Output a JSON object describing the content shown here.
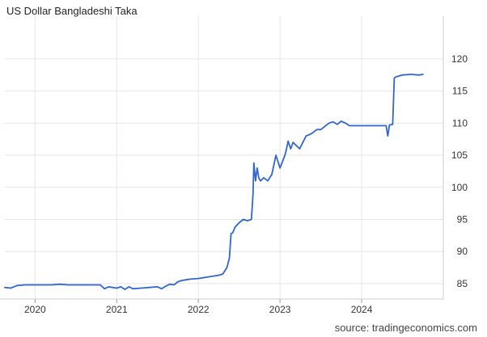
{
  "chart_data": {
    "type": "line",
    "title": "US Dollar Bangladeshi Taka",
    "source": "source: tradingeconomics.com",
    "xlabel": "",
    "ylabel": "",
    "x_ticks": [
      "2020",
      "2021",
      "2022",
      "2023",
      "2024"
    ],
    "y_ticks": [
      85,
      90,
      95,
      100,
      105,
      110,
      115,
      120
    ],
    "xlim": [
      2019.63,
      2025.0
    ],
    "ylim": [
      82.6,
      125.4
    ],
    "grid": true,
    "line_color": "#3366cc",
    "series": [
      {
        "x": [
          2019.63,
          2019.7,
          2019.78,
          2019.88,
          2020.0,
          2020.1,
          2020.2,
          2020.3,
          2020.4,
          2020.45,
          2020.5,
          2020.6,
          2020.7,
          2020.8,
          2020.85,
          2020.9,
          2020.95,
          2021.0,
          2021.05,
          2021.1,
          2021.15,
          2021.2,
          2021.3,
          2021.4,
          2021.5,
          2021.55,
          2021.6,
          2021.65,
          2021.7,
          2021.75,
          2021.8,
          2021.85,
          2021.9,
          2022.0,
          2022.1,
          2022.2,
          2022.25,
          2022.3,
          2022.35,
          2022.38,
          2022.4,
          2022.42,
          2022.45,
          2022.5,
          2022.55,
          2022.6,
          2022.65,
          2022.67,
          2022.68,
          2022.7,
          2022.72,
          2022.74,
          2022.76,
          2022.78,
          2022.8,
          2022.85,
          2022.9,
          2022.95,
          2023.0,
          2023.03,
          2023.06,
          2023.08,
          2023.1,
          2023.13,
          2023.16,
          2023.2,
          2023.24,
          2023.28,
          2023.32,
          2023.36,
          2023.4,
          2023.45,
          2023.5,
          2023.55,
          2023.6,
          2023.65,
          2023.7,
          2023.75,
          2023.8,
          2023.85,
          2023.9,
          2024.0,
          2024.1,
          2024.2,
          2024.3,
          2024.32,
          2024.34,
          2024.38,
          2024.4,
          2024.42,
          2024.5,
          2024.6,
          2024.7,
          2024.75
        ],
        "values": [
          84.4,
          84.3,
          84.7,
          84.8,
          84.8,
          84.8,
          84.8,
          84.9,
          84.8,
          84.8,
          84.8,
          84.8,
          84.8,
          84.8,
          84.2,
          84.5,
          84.4,
          84.3,
          84.5,
          84.1,
          84.5,
          84.2,
          84.3,
          84.4,
          84.5,
          84.2,
          84.6,
          84.9,
          84.8,
          85.3,
          85.5,
          85.6,
          85.7,
          85.8,
          86.0,
          86.2,
          86.3,
          86.5,
          87.5,
          89.0,
          92.8,
          92.9,
          93.8,
          94.5,
          95.0,
          94.8,
          95.0,
          99.0,
          103.8,
          101.0,
          103.0,
          101.5,
          101.0,
          101.2,
          101.5,
          101.0,
          102.0,
          105.0,
          103.0,
          104.0,
          105.0,
          106.0,
          107.2,
          106.0,
          107.0,
          106.5,
          106.0,
          107.0,
          108.0,
          108.2,
          108.5,
          109.0,
          109.0,
          109.5,
          110.0,
          110.2,
          109.8,
          110.3,
          110.0,
          109.6,
          109.6,
          109.6,
          109.6,
          109.6,
          109.6,
          108.0,
          109.7,
          109.8,
          117.0,
          117.2,
          117.5,
          117.6,
          117.5,
          117.6
        ]
      }
    ]
  }
}
